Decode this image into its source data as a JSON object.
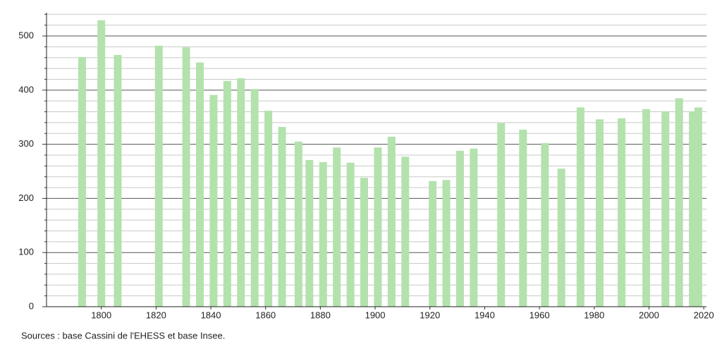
{
  "chart_data": {
    "type": "bar",
    "source": "Sources : base Cassini de l'EHESS et base Insee.",
    "x": [
      1793,
      1800,
      1806,
      1821,
      1831,
      1836,
      1841,
      1846,
      1851,
      1856,
      1861,
      1866,
      1872,
      1876,
      1881,
      1886,
      1891,
      1896,
      1901,
      1906,
      1911,
      1921,
      1926,
      1931,
      1936,
      1946,
      1954,
      1962,
      1968,
      1975,
      1982,
      1990,
      1999,
      2006,
      2011,
      2016,
      2018
    ],
    "values": [
      461,
      529,
      465,
      482,
      479,
      451,
      391,
      417,
      422,
      402,
      362,
      332,
      305,
      271,
      267,
      294,
      266,
      238,
      294,
      314,
      277,
      232,
      234,
      288,
      292,
      339,
      327,
      302,
      255,
      368,
      346,
      348,
      365,
      361,
      385,
      361,
      368
    ],
    "color": "#b3e2ad",
    "xlim": [
      1780,
      2021
    ],
    "xticks": [
      1800,
      1820,
      1840,
      1860,
      1880,
      1900,
      1920,
      1940,
      1960,
      1980,
      2000,
      2020
    ],
    "ylim": [
      0,
      543
    ],
    "yticks": [
      0,
      100,
      200,
      300,
      400,
      500
    ],
    "minor_yticks": [
      20,
      40,
      60,
      80,
      120,
      140,
      160,
      180,
      220,
      240,
      260,
      280,
      320,
      340,
      360,
      380,
      420,
      440,
      460,
      480,
      520,
      540
    ],
    "grid": true
  }
}
